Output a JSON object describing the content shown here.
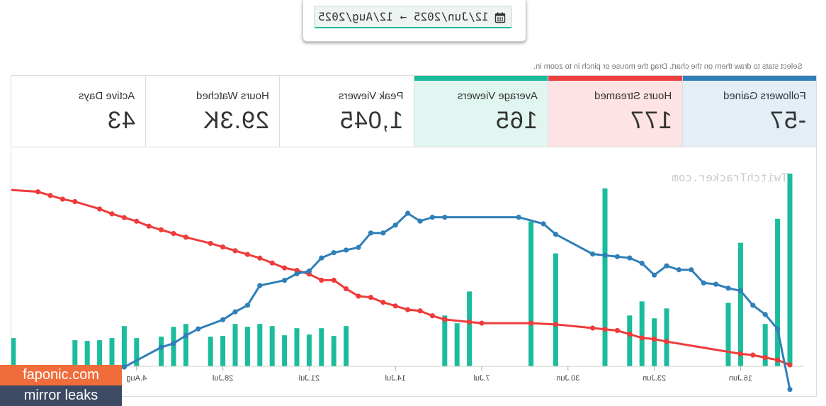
{
  "date_range": {
    "value": "12/Jun/2025 → 12/Aug/2025",
    "icon": "calendar-icon"
  },
  "hint": "Select stats to draw them on the chart. Drag the mouse or pinch in to zoom in.",
  "stats": [
    {
      "label": "Active Days",
      "value": "43",
      "bg": "#ffffff",
      "accent": ""
    },
    {
      "label": "Hours Watched",
      "value": "29.3K",
      "bg": "#ffffff",
      "accent": ""
    },
    {
      "label": "Peak Viewers",
      "value": "1,045",
      "bg": "#ffffff",
      "accent": ""
    },
    {
      "label": "Average Viewers",
      "value": "165",
      "bg": "#e2f6f1",
      "accent": "#1abc9c"
    },
    {
      "label": "Hours Streamed",
      "value": "177",
      "bg": "#fde3e3",
      "accent": "#ee4040"
    },
    {
      "label": "Followers Gained",
      "value": "-57",
      "bg": "#e3eef7",
      "accent": "#2f7fb8"
    }
  ],
  "watermark": "TwitchTracker.com",
  "overlay": {
    "line1": "faponic.com",
    "line2": "mirror leaks"
  },
  "chart_data": {
    "type": "bar+line",
    "mirrored": true,
    "x_ticks": [
      "16.Jun",
      "23.Jun",
      "30.Jun",
      "7.Jul",
      "14.Jul",
      "21.Jul",
      "28.Jul",
      "4.Aug"
    ],
    "tick_day_index": [
      4,
      11,
      18,
      25,
      32,
      39,
      46,
      53
    ],
    "colors": {
      "bars": "#1abc9c",
      "hours_streamed": "#ee3b3b",
      "followers": "#2f7fb8"
    },
    "series": [
      {
        "name": "Average Viewers",
        "kind": "bar",
        "points": [
          [
            0,
            273
          ],
          [
            1,
            209
          ],
          [
            2,
            60
          ],
          [
            4,
            175
          ],
          [
            5,
            90
          ],
          [
            10,
            82
          ],
          [
            11,
            68
          ],
          [
            12,
            92
          ],
          [
            13,
            72
          ],
          [
            15,
            252
          ],
          [
            19,
            160
          ],
          [
            21,
            205
          ],
          [
            26,
            106
          ],
          [
            27,
            61
          ],
          [
            28,
            72
          ],
          [
            36,
            57
          ],
          [
            37,
            43
          ],
          [
            38,
            54
          ],
          [
            39,
            45
          ],
          [
            40,
            54
          ],
          [
            41,
            44
          ],
          [
            42,
            57
          ],
          [
            43,
            60
          ],
          [
            44,
            56
          ],
          [
            45,
            60
          ],
          [
            46,
            43
          ],
          [
            47,
            42
          ],
          [
            49,
            60
          ],
          [
            50,
            56
          ],
          [
            51,
            42
          ],
          [
            53,
            40
          ],
          [
            54,
            57
          ],
          [
            55,
            40
          ],
          [
            56,
            37
          ],
          [
            57,
            36
          ],
          [
            58,
            37
          ],
          [
            63,
            40
          ],
          [
            64,
            38
          ],
          [
            65,
            60
          ]
        ]
      },
      {
        "name": "Hours Streamed",
        "kind": "line",
        "points": [
          [
            0,
            0
          ],
          [
            1,
            4
          ],
          [
            2,
            6
          ],
          [
            3,
            8
          ],
          [
            4,
            9
          ],
          [
            10,
            19
          ],
          [
            11,
            21
          ],
          [
            12,
            22
          ],
          [
            13,
            25
          ],
          [
            14,
            28
          ],
          [
            15,
            29
          ],
          [
            16,
            30
          ],
          [
            19,
            33
          ],
          [
            21,
            34
          ],
          [
            25,
            34
          ],
          [
            26,
            35
          ],
          [
            28,
            37
          ],
          [
            29,
            40
          ],
          [
            30,
            44
          ],
          [
            31,
            45
          ],
          [
            32,
            48
          ],
          [
            33,
            51
          ],
          [
            34,
            55
          ],
          [
            35,
            56
          ],
          [
            36,
            62
          ],
          [
            37,
            69
          ],
          [
            38,
            69
          ],
          [
            39,
            74
          ],
          [
            40,
            77
          ],
          [
            41,
            79
          ],
          [
            42,
            83
          ],
          [
            43,
            87
          ],
          [
            44,
            90
          ],
          [
            45,
            93
          ],
          [
            46,
            96
          ],
          [
            47,
            99
          ],
          [
            49,
            104
          ],
          [
            50,
            107
          ],
          [
            51,
            110
          ],
          [
            52,
            113
          ],
          [
            53,
            117
          ],
          [
            54,
            120
          ],
          [
            55,
            123
          ],
          [
            56,
            127
          ],
          [
            58,
            133
          ],
          [
            59,
            135
          ],
          [
            60,
            138
          ],
          [
            61,
            141
          ],
          [
            64,
            143
          ],
          [
            65,
            146
          ]
        ]
      },
      {
        "name": "Followers Gained",
        "kind": "line",
        "points": [
          [
            0,
            -57
          ],
          [
            1,
            -11
          ],
          [
            2,
            0
          ],
          [
            3,
            7
          ],
          [
            4,
            18
          ],
          [
            5,
            20
          ],
          [
            6,
            23
          ],
          [
            7,
            24
          ],
          [
            8,
            34
          ],
          [
            9,
            34
          ],
          [
            10,
            37
          ],
          [
            11,
            30
          ],
          [
            12,
            39
          ],
          [
            13,
            43
          ],
          [
            14,
            44
          ],
          [
            15,
            45
          ],
          [
            16,
            46
          ],
          [
            19,
            61
          ],
          [
            20,
            69
          ],
          [
            22,
            74
          ],
          [
            28,
            74
          ],
          [
            29,
            74
          ],
          [
            30,
            71
          ],
          [
            31,
            77
          ],
          [
            32,
            68
          ],
          [
            33,
            62
          ],
          [
            34,
            62
          ],
          [
            35,
            51
          ],
          [
            36,
            49
          ],
          [
            37,
            47
          ],
          [
            38,
            43
          ],
          [
            39,
            33
          ],
          [
            40,
            31
          ],
          [
            41,
            26
          ],
          [
            43,
            22
          ],
          [
            44,
            7
          ],
          [
            45,
            2
          ],
          [
            46,
            -4
          ],
          [
            48,
            -11
          ],
          [
            49,
            -16
          ],
          [
            50,
            -22
          ],
          [
            51,
            -25
          ],
          [
            54,
            -40
          ],
          [
            55,
            -44
          ]
        ]
      }
    ]
  }
}
